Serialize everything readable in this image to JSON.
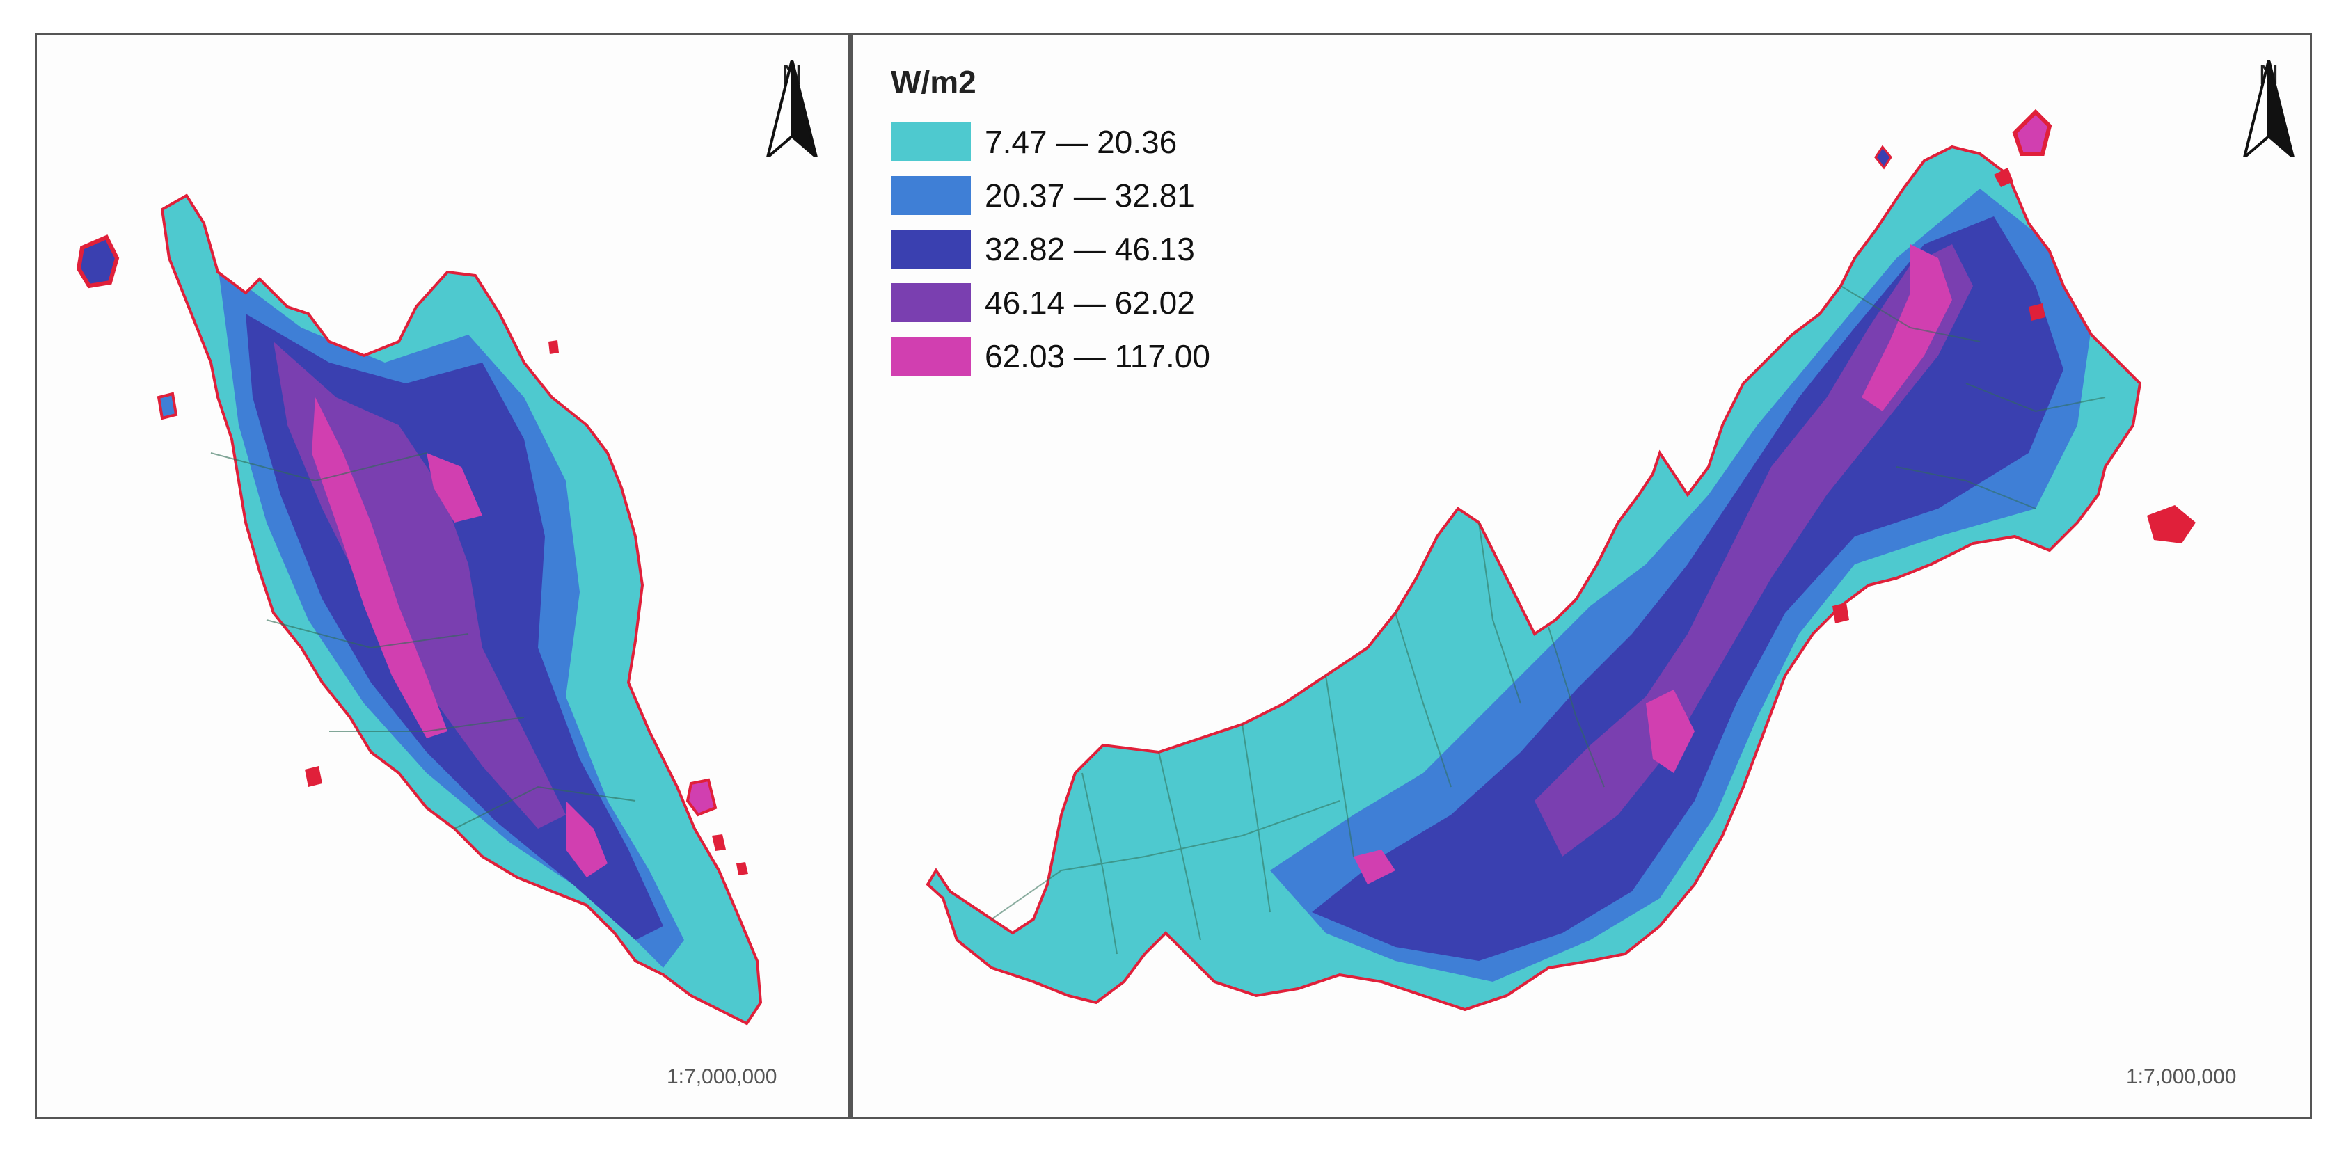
{
  "legend": {
    "title": "W/m2",
    "classes": [
      {
        "label": "7.47 — 20.36",
        "min": 7.47,
        "max": 20.36,
        "color": "#4ec9cf"
      },
      {
        "label": "20.37 — 32.81",
        "min": 20.37,
        "max": 32.81,
        "color": "#3f7fd6"
      },
      {
        "label": "32.82 — 46.13",
        "min": 32.82,
        "max": 46.13,
        "color": "#3a40b0"
      },
      {
        "label": "46.14 — 62.02",
        "min": 46.14,
        "max": 62.02,
        "color": "#7a3fb0"
      },
      {
        "label": "62.03 — 117.00",
        "min": 62.03,
        "max": 117.0,
        "color": "#d13fb0"
      }
    ]
  },
  "left_map": {
    "north_label": "N",
    "scale_text": "1:7,000,000"
  },
  "right_map": {
    "north_label": "N",
    "scale_text": "1:7,000,000"
  },
  "colors": {
    "boundary": "#e0203a",
    "admin_lines": "#2f6d55"
  }
}
